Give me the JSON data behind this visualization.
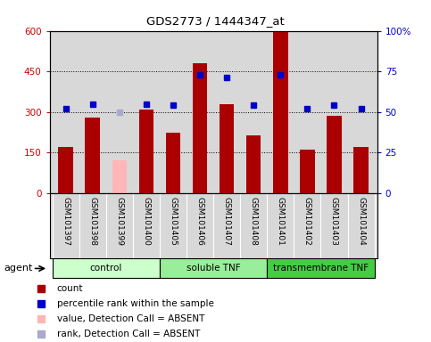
{
  "title": "GDS2773 / 1444347_at",
  "samples": [
    "GSM101397",
    "GSM101398",
    "GSM101399",
    "GSM101400",
    "GSM101405",
    "GSM101406",
    "GSM101407",
    "GSM101408",
    "GSM101401",
    "GSM101402",
    "GSM101403",
    "GSM101404"
  ],
  "bar_values": [
    170,
    280,
    null,
    310,
    225,
    480,
    330,
    215,
    595,
    160,
    285,
    170
  ],
  "bar_absent_value": 120,
  "bar_absent_index": 2,
  "rank_values": [
    52,
    55,
    null,
    55,
    54,
    73,
    71,
    54,
    73,
    52,
    54,
    52
  ],
  "rank_absent_value": 50,
  "rank_absent_index": 2,
  "ylim_left": [
    0,
    600
  ],
  "ylim_right": [
    0,
    100
  ],
  "yticks_left": [
    0,
    150,
    300,
    450,
    600
  ],
  "yticks_right": [
    0,
    25,
    50,
    75,
    100
  ],
  "ytick_labels_left": [
    "0",
    "150",
    "300",
    "450",
    "600"
  ],
  "ytick_labels_right": [
    "0",
    "25",
    "50",
    "75",
    "100%"
  ],
  "hlines": [
    150,
    300,
    450
  ],
  "bar_color": "#AA0000",
  "bar_absent_color": "#FFB6B6",
  "rank_color": "#0000CC",
  "rank_absent_color": "#AAAACC",
  "groups": [
    {
      "label": "control",
      "start": 0,
      "end": 3,
      "color": "#CCFFCC"
    },
    {
      "label": "soluble TNF",
      "start": 4,
      "end": 7,
      "color": "#99EE99"
    },
    {
      "label": "transmembrane TNF",
      "start": 8,
      "end": 11,
      "color": "#44CC44"
    }
  ],
  "legend_items": [
    {
      "label": "count",
      "color": "#AA0000"
    },
    {
      "label": "percentile rank within the sample",
      "color": "#0000CC"
    },
    {
      "label": "value, Detection Call = ABSENT",
      "color": "#FFB6B6"
    },
    {
      "label": "rank, Detection Call = ABSENT",
      "color": "#AAAACC"
    }
  ],
  "bg_color": "#D8D8D8",
  "tick_label_color_left": "#CC0000",
  "tick_label_color_right": "#0000CC"
}
